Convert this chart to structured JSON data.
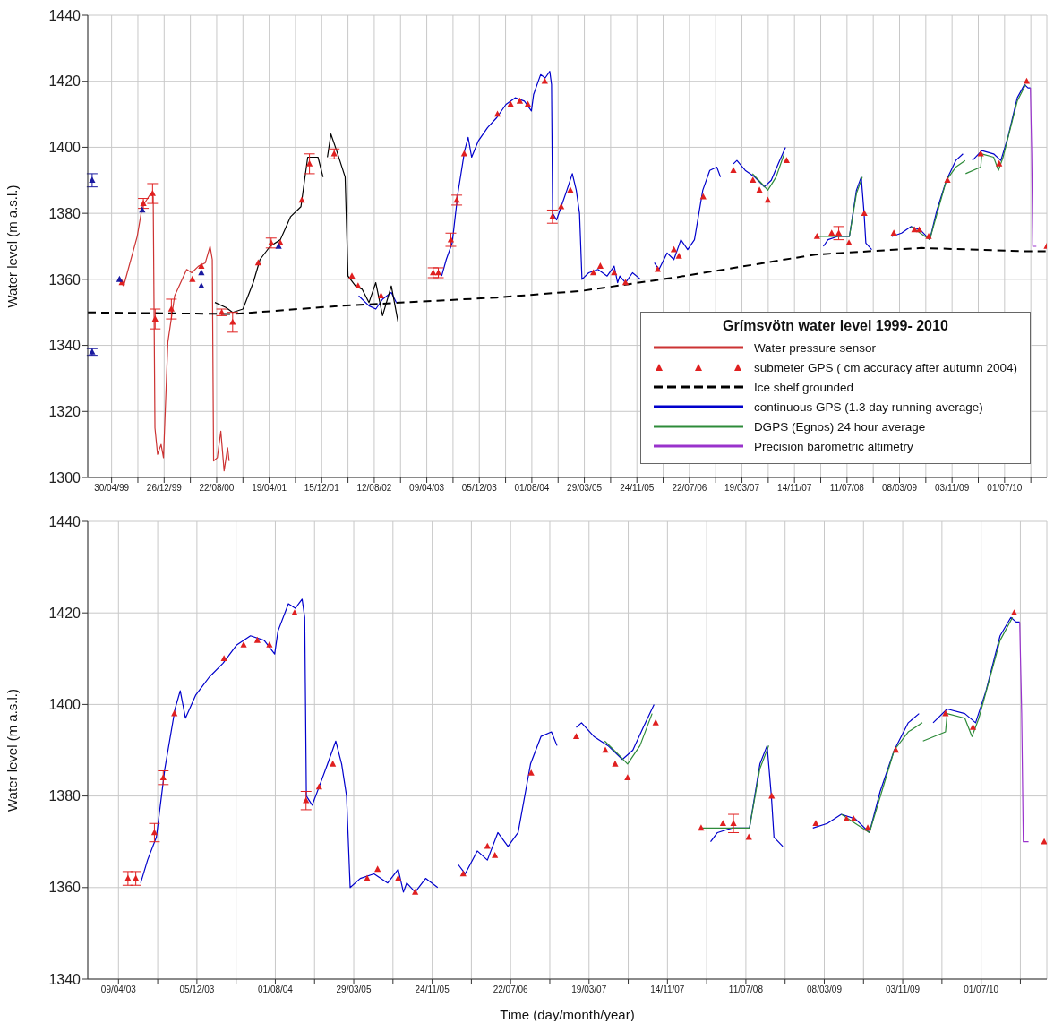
{
  "chart_data": [
    {
      "type": "line",
      "ylabel": "Water level (m a.s.l.)",
      "legend_title": "Grímsvötn water level 1999- 2010",
      "legend": "bottom right",
      "grid": true,
      "xlim": [
        "1999-01-11",
        "2011-01-10"
      ],
      "ylim": [
        1300,
        1440
      ],
      "yticks": [
        1300,
        1320,
        1340,
        1360,
        1380,
        1400,
        1420,
        1440
      ],
      "xticks": [
        {
          "value": "1999-04-30",
          "label": "30/04/99"
        },
        {
          "value": "1999-08-28",
          "label": null
        },
        {
          "value": "1999-12-26",
          "label": "26/12/99"
        },
        {
          "value": "2000-04-24",
          "label": null
        },
        {
          "value": "2000-08-22",
          "label": "22/08/00"
        },
        {
          "value": "2000-12-20",
          "label": null
        },
        {
          "value": "2001-04-19",
          "label": "19/04/01"
        },
        {
          "value": "2001-08-17",
          "label": null
        },
        {
          "value": "2001-12-15",
          "label": "15/12/01"
        },
        {
          "value": "2002-04-14",
          "label": null
        },
        {
          "value": "2002-08-12",
          "label": "12/08/02"
        },
        {
          "value": "2002-12-10",
          "label": null
        },
        {
          "value": "2003-04-09",
          "label": "09/04/03"
        },
        {
          "value": "2003-08-07",
          "label": null
        },
        {
          "value": "2003-12-05",
          "label": "05/12/03"
        },
        {
          "value": "2004-04-03",
          "label": null
        },
        {
          "value": "2004-08-01",
          "label": "01/08/04"
        },
        {
          "value": "2004-11-29",
          "label": null
        },
        {
          "value": "2005-03-29",
          "label": "29/03/05"
        },
        {
          "value": "2005-07-27",
          "label": null
        },
        {
          "value": "2005-11-24",
          "label": "24/11/05"
        },
        {
          "value": "2006-03-24",
          "label": null
        },
        {
          "value": "2006-07-22",
          "label": "22/07/06"
        },
        {
          "value": "2006-11-19",
          "label": null
        },
        {
          "value": "2007-03-19",
          "label": "19/03/07"
        },
        {
          "value": "2007-07-17",
          "label": null
        },
        {
          "value": "2007-11-14",
          "label": "14/11/07"
        },
        {
          "value": "2008-03-13",
          "label": null
        },
        {
          "value": "2008-07-11",
          "label": "11/07/08"
        },
        {
          "value": "2008-11-08",
          "label": null
        },
        {
          "value": "2009-03-08",
          "label": "08/03/09"
        },
        {
          "value": "2009-07-06",
          "label": null
        },
        {
          "value": "2009-11-03",
          "label": "03/11/09"
        },
        {
          "value": "2010-03-03",
          "label": null
        },
        {
          "value": "2010-07-01",
          "label": "01/07/10"
        },
        {
          "value": "2010-10-29",
          "label": null
        }
      ],
      "series": [
        {
          "name": "Water pressure sensor",
          "color": "#cc3333",
          "x": [
            "1999-05-31",
            "1999-06-24",
            "1999-08-25",
            "1999-09-17",
            "1999-10-26",
            "1999-11-06",
            "1999-11-14",
            "1999-11-26",
            "1999-12-12",
            "1999-12-23",
            "2000-01-12",
            "2000-02-12",
            "2000-04-07",
            "2000-04-30",
            "2000-05-31",
            "2000-07-01",
            "2000-07-23",
            "2000-08-02",
            "2000-08-08",
            "2000-08-25",
            "2000-09-10",
            "2000-09-25",
            "2000-10-11",
            "2000-10-18"
          ],
          "values": [
            1360,
            1358,
            1373,
            1382,
            1386,
            1385,
            1315,
            1307,
            1310,
            1306,
            1341,
            1355,
            1363,
            1362,
            1364,
            1365,
            1370,
            1366,
            1305,
            1306,
            1314,
            1302,
            1309,
            1305
          ]
        },
        {
          "name": "submeter GPS ( cm accuracy after autumn 2004)",
          "type": "scatter",
          "marker": "triangle",
          "color": "#e02020",
          "x": [
            "1999-06-16",
            "1999-09-22",
            "1999-11-03",
            "1999-11-15",
            "2000-01-28",
            "2000-05-03",
            "2000-06-13",
            "2000-09-14",
            "2000-11-03",
            "2001-02-28",
            "2001-04-28",
            "2001-06-09",
            "2001-09-15",
            "2001-10-20",
            "2002-02-10",
            "2002-05-02",
            "2002-05-30",
            "2002-09-12",
            "2003-05-08",
            "2003-06-01",
            "2003-07-28",
            "2003-08-24",
            "2003-09-27",
            "2004-02-26",
            "2004-04-26",
            "2004-06-07",
            "2004-07-14",
            "2004-09-29",
            "2004-11-03",
            "2004-12-13",
            "2005-01-24",
            "2005-05-09",
            "2005-06-10",
            "2005-08-12",
            "2005-10-03",
            "2006-02-27",
            "2006-05-12",
            "2006-06-04",
            "2006-09-23",
            "2007-02-08",
            "2007-05-08",
            "2007-06-07",
            "2007-07-15",
            "2007-10-09",
            "2008-02-25",
            "2008-05-02",
            "2008-06-03",
            "2008-07-20",
            "2008-09-28",
            "2009-02-10",
            "2009-05-15",
            "2009-06-06",
            "2009-07-19",
            "2009-10-13",
            "2010-03-14",
            "2010-06-06",
            "2010-10-10",
            "2011-01-10"
          ],
          "values": [
            1359,
            1383,
            1386,
            1348,
            1351,
            1360,
            1364,
            1350,
            1347,
            1365,
            1371,
            1371,
            1384,
            1395,
            1398,
            1361,
            1358,
            1355,
            1362,
            1362,
            1372,
            1384,
            1398,
            1410,
            1413,
            1414,
            1413,
            1420,
            1379,
            1382,
            1387,
            1362,
            1364,
            1362,
            1359,
            1363,
            1369,
            1367,
            1385,
            1393,
            1390,
            1387,
            1384,
            1396,
            1373,
            1374,
            1374,
            1371,
            1380,
            1374,
            1375,
            1375,
            1373,
            1390,
            1398,
            1395,
            1420,
            1370
          ],
          "errors": [
            null,
            1.5,
            3,
            3,
            3,
            null,
            null,
            1,
            3,
            null,
            1.5,
            null,
            null,
            3,
            1.5,
            null,
            null,
            null,
            1.5,
            1.5,
            2,
            1.5,
            null,
            null,
            null,
            null,
            null,
            null,
            2,
            null,
            null,
            null,
            null,
            null,
            null,
            null,
            null,
            null,
            null,
            null,
            null,
            null,
            null,
            null,
            null,
            null,
            2,
            null,
            null,
            null,
            null,
            null,
            null,
            null,
            null,
            null,
            null,
            null
          ]
        },
        {
          "name": "Ice shelf grounded",
          "line_style": "dashed",
          "color": "#000000",
          "x": [
            "1999-01-11",
            "2000-11-03",
            "2002-03-17",
            "2004-02-22",
            "2005-03-16",
            "2006-05-11",
            "2008-02-17",
            "2009-06-16",
            "2010-10-14",
            "2011-01-10"
          ],
          "values": [
            1350,
            1349.5,
            1352,
            1354.5,
            1356.5,
            1360.5,
            1367.5,
            1369.5,
            1368.5,
            1368.5
          ]
        },
        {
          "name": "continuous GPS (1.3 day running average)",
          "color": "#0000cc",
          "x": [
            "2002-06-02",
            "2002-07-19",
            "2002-08-19",
            "2002-09-19",
            "2002-10-29",
            "2002-11-21",
            "2003-02-01",
            "2003-06-16",
            "2003-07-07",
            "2003-08-03",
            "2003-08-29",
            "2003-09-29",
            "2003-10-15",
            "2003-10-31",
            "2003-12-01",
            "2004-01-12",
            "2004-02-23",
            "2004-04-05",
            "2004-05-17",
            "2004-06-28",
            "2004-07-30",
            "2004-08-09",
            "2004-09-10",
            "2004-10-01",
            "2004-10-22",
            "2004-10-30",
            "2004-11-04",
            "2004-11-22",
            "2004-12-13",
            "2005-01-08",
            "2005-02-02",
            "2005-02-20",
            "2005-03-07",
            "2005-03-18",
            "2005-04-18",
            "2005-05-30",
            "2005-07-11",
            "2005-08-12",
            "2005-08-28",
            "2005-09-07",
            "2005-10-03",
            "2005-11-04",
            "2005-12-11",
            "2006-01-10",
            "2006-02-12",
            "2006-03-05",
            "2006-04-11",
            "2006-05-12",
            "2006-06-13",
            "2006-07-14",
            "2006-08-14",
            "2006-09-21",
            "2006-10-23",
            "2006-11-24",
            "2006-12-11",
            "2007-01-10",
            "2007-02-08",
            "2007-02-24",
            "2007-04-03",
            "2007-05-16",
            "2007-06-29",
            "2007-07-31",
            "2007-09-01",
            "2007-10-04",
            "2008-01-01",
            "2008-03-25",
            "2008-04-15",
            "2008-05-29",
            "2008-07-22",
            "2008-08-23",
            "2008-09-14",
            "2008-09-27",
            "2008-10-05",
            "2008-11-01",
            "2008-12-15",
            "2009-02-01",
            "2009-03-17",
            "2009-04-29",
            "2009-06-11",
            "2009-07-24",
            "2009-08-26",
            "2009-10-08",
            "2009-11-20",
            "2009-12-23",
            "2010-01-15",
            "2010-02-04",
            "2010-03-19",
            "2010-05-12",
            "2010-06-14",
            "2010-07-16",
            "2010-08-28",
            "2010-09-30",
            "2010-10-16",
            "2010-10-27"
          ],
          "values": [
            1355,
            1352,
            1351,
            1354,
            1356,
            1353,
            null,
            1361,
            1366,
            1371,
            1386,
            1399,
            1403,
            1397,
            1402,
            1406,
            1409,
            1413,
            1415,
            1414,
            1411,
            1416,
            1422,
            1421,
            1423,
            1419,
            1380,
            1378,
            1382,
            1387,
            1392,
            1387,
            1380,
            1360,
            1362,
            1363,
            1361,
            1364,
            1359,
            1361,
            1359,
            1362,
            1360,
            null,
            1365,
            1363,
            1368,
            1366,
            1372,
            1369,
            1372,
            1387,
            1393,
            1394,
            1391,
            null,
            1395,
            1396,
            1393,
            1391,
            1388,
            1390,
            1395,
            1400,
            null,
            1370,
            1372,
            1373,
            1373,
            1387,
            1391,
            1380,
            1371,
            1369,
            null,
            1373,
            1374,
            1376,
            1375,
            1372,
            1381,
            1390,
            1396,
            1398,
            null,
            1396,
            1399,
            1398,
            1396,
            1403,
            1415,
            1419,
            1418,
            1418
          ]
        },
        {
          "name": "DGPS (Egnos) 24 hour average",
          "color": "#2e8b3a",
          "x": [
            "2007-05-06",
            "2007-06-18",
            "2007-07-15",
            "2007-08-22",
            "2007-09-28",
            "2007-12-01",
            "2008-02-21",
            "2008-05-07",
            "2008-07-22",
            "2008-08-23",
            "2008-09-19",
            "2008-12-15",
            "2009-04-29",
            "2009-06-11",
            "2009-07-24",
            "2009-10-08",
            "2009-11-20",
            "2010-01-02",
            "2010-01-03",
            "2010-01-04",
            "2010-03-14",
            "2010-03-19",
            "2010-05-12",
            "2010-06-03",
            "2010-06-24",
            "2010-08-28",
            "2010-10-05"
          ],
          "values": [
            1392,
            1389,
            1387,
            1391,
            1398,
            null,
            1373,
            1373,
            1373,
            1386,
            1391,
            null,
            1376,
            1374,
            1372,
            1390,
            1394,
            1396,
            null,
            1392,
            1394,
            1398,
            1397,
            1393,
            1397,
            1414,
            1419
          ]
        },
        {
          "name": "Precision barometric altimetry",
          "color": "#9932cc",
          "x": [
            "2010-10-27",
            "2010-11-02",
            "2010-11-07",
            "2010-11-23"
          ],
          "values": [
            1418,
            1398,
            1370,
            1370
          ]
        },
        {
          "color": "#000000",
          "x": [
            "2000-08-14",
            "2000-10-03",
            "2000-11-03",
            "2000-12-20",
            "2001-02-05",
            "2001-03-08",
            "2001-04-23",
            "2001-06-09",
            "2001-07-26",
            "2001-09-11",
            "2001-10-12",
            "2001-11-28",
            "2001-12-21",
            "2001-12-31",
            "2002-01-10",
            "2002-01-26",
            "2002-02-21",
            "2002-04-01",
            "2002-04-14",
            "2002-05-18",
            "2002-06-18",
            "2002-07-19",
            "2002-08-19",
            "2002-09-19",
            "2002-10-29",
            "2002-11-29"
          ],
          "values": [
            1353,
            1351.5,
            1350,
            1351,
            1359,
            1366,
            1370,
            1372,
            1379,
            1382,
            1397,
            1397,
            1391,
            null,
            1397,
            1404,
            1399,
            1391,
            1361,
            1358,
            1357,
            1353,
            1359,
            1349,
            1358,
            1347
          ]
        },
        {
          "type": "scatter",
          "marker": "triangle",
          "color": "#1a1aa0",
          "x": [
            "1999-01-31",
            "1999-01-31",
            "1999-06-05",
            "1999-09-17",
            "2000-06-13",
            "2000-06-13",
            "2001-06-01"
          ],
          "values": [
            1390,
            1338,
            1360,
            1381,
            1362,
            1358,
            1370
          ],
          "errors": [
            2,
            1,
            null,
            null,
            null,
            null,
            null
          ]
        }
      ]
    },
    {
      "type": "line",
      "xlabel": "Time (day/month/year)",
      "ylabel": "Water level (m a.s.l.)",
      "grid": true,
      "xlim": [
        "2003-01-05",
        "2011-01-18"
      ],
      "ylim": [
        1340,
        1440
      ],
      "yticks": [
        1340,
        1360,
        1380,
        1400,
        1420,
        1440
      ],
      "xticks": [
        {
          "value": "2003-04-09",
          "label": "09/04/03"
        },
        {
          "value": "2003-08-07",
          "label": null
        },
        {
          "value": "2003-12-05",
          "label": "05/12/03"
        },
        {
          "value": "2004-04-03",
          "label": null
        },
        {
          "value": "2004-08-01",
          "label": "01/08/04"
        },
        {
          "value": "2004-11-29",
          "label": null
        },
        {
          "value": "2005-03-29",
          "label": "29/03/05"
        },
        {
          "value": "2005-07-27",
          "label": null
        },
        {
          "value": "2005-11-24",
          "label": "24/11/05"
        },
        {
          "value": "2006-03-24",
          "label": null
        },
        {
          "value": "2006-07-22",
          "label": "22/07/06"
        },
        {
          "value": "2006-11-19",
          "label": null
        },
        {
          "value": "2007-03-19",
          "label": "19/03/07"
        },
        {
          "value": "2007-07-17",
          "label": null
        },
        {
          "value": "2007-11-14",
          "label": "14/11/07"
        },
        {
          "value": "2008-03-13",
          "label": null
        },
        {
          "value": "2008-07-11",
          "label": "11/07/08"
        },
        {
          "value": "2008-11-08",
          "label": null
        },
        {
          "value": "2009-03-08",
          "label": "08/03/09"
        },
        {
          "value": "2009-07-06",
          "label": null
        },
        {
          "value": "2009-11-03",
          "label": "03/11/09"
        },
        {
          "value": "2010-03-03",
          "label": null
        },
        {
          "value": "2010-07-01",
          "label": "01/07/10"
        },
        {
          "value": "2010-10-29",
          "label": null
        }
      ],
      "series": [
        {
          "color": "#0000cc",
          "x": [
            "2003-06-16",
            "2003-07-07",
            "2003-08-03",
            "2003-08-29",
            "2003-09-29",
            "2003-10-15",
            "2003-10-31",
            "2003-12-01",
            "2004-01-12",
            "2004-02-23",
            "2004-04-05",
            "2004-05-17",
            "2004-06-28",
            "2004-07-30",
            "2004-08-09",
            "2004-09-10",
            "2004-10-01",
            "2004-10-22",
            "2004-10-30",
            "2004-11-04",
            "2004-11-22",
            "2004-12-13",
            "2005-01-08",
            "2005-02-02",
            "2005-02-20",
            "2005-03-07",
            "2005-03-18",
            "2005-04-18",
            "2005-05-30",
            "2005-07-11",
            "2005-08-12",
            "2005-08-28",
            "2005-09-07",
            "2005-10-03",
            "2005-11-04",
            "2005-12-11",
            "2006-01-10",
            "2006-02-12",
            "2006-03-05",
            "2006-04-11",
            "2006-05-12",
            "2006-06-13",
            "2006-07-14",
            "2006-08-14",
            "2006-09-21",
            "2006-10-23",
            "2006-11-24",
            "2006-12-11",
            "2007-01-10",
            "2007-02-08",
            "2007-02-24",
            "2007-04-03",
            "2007-05-16",
            "2007-06-29",
            "2007-07-31",
            "2007-09-01",
            "2007-10-04",
            "2008-01-01",
            "2008-03-25",
            "2008-04-15",
            "2008-05-29",
            "2008-07-22",
            "2008-08-23",
            "2008-09-14",
            "2008-09-27",
            "2008-10-05",
            "2008-11-01",
            "2008-12-15",
            "2009-02-01",
            "2009-03-17",
            "2009-04-29",
            "2009-06-11",
            "2009-07-24",
            "2009-08-26",
            "2009-10-08",
            "2009-11-20",
            "2009-12-23",
            "2010-01-15",
            "2010-02-04",
            "2010-03-19",
            "2010-05-12",
            "2010-06-14",
            "2010-07-16",
            "2010-08-28",
            "2010-09-30",
            "2010-10-16",
            "2010-10-27"
          ],
          "values": [
            1361,
            1366,
            1371,
            1386,
            1399,
            1403,
            1397,
            1402,
            1406,
            1409,
            1413,
            1415,
            1414,
            1411,
            1416,
            1422,
            1421,
            1423,
            1419,
            1380,
            1378,
            1382,
            1387,
            1392,
            1387,
            1380,
            1360,
            1362,
            1363,
            1361,
            1364,
            1359,
            1361,
            1359,
            1362,
            1360,
            null,
            1365,
            1363,
            1368,
            1366,
            1372,
            1369,
            1372,
            1387,
            1393,
            1394,
            1391,
            null,
            1395,
            1396,
            1393,
            1391,
            1388,
            1390,
            1395,
            1400,
            null,
            1370,
            1372,
            1373,
            1373,
            1387,
            1391,
            1380,
            1371,
            1369,
            null,
            1373,
            1374,
            1376,
            1375,
            1372,
            1381,
            1390,
            1396,
            1398,
            null,
            1396,
            1399,
            1398,
            1396,
            1403,
            1415,
            1419,
            1418,
            1418
          ]
        },
        {
          "color": "#2e8b3a",
          "x": [
            "2007-05-06",
            "2007-06-18",
            "2007-07-15",
            "2007-08-22",
            "2007-09-28",
            "2007-12-01",
            "2008-02-21",
            "2008-05-07",
            "2008-07-22",
            "2008-08-23",
            "2008-09-19",
            "2008-12-15",
            "2009-04-29",
            "2009-06-11",
            "2009-07-24",
            "2009-10-08",
            "2009-11-20",
            "2010-01-02",
            "2010-01-03",
            "2010-01-04",
            "2010-03-14",
            "2010-03-19",
            "2010-05-12",
            "2010-06-03",
            "2010-06-24",
            "2010-08-28",
            "2010-10-05"
          ],
          "values": [
            1392,
            1389,
            1387,
            1391,
            1398,
            null,
            1373,
            1373,
            1373,
            1386,
            1391,
            null,
            1376,
            1374,
            1372,
            1390,
            1394,
            1396,
            null,
            1392,
            1394,
            1398,
            1397,
            1393,
            1397,
            1414,
            1419
          ]
        },
        {
          "color": "#9932cc",
          "x": [
            "2010-10-27",
            "2010-11-02",
            "2010-11-07",
            "2010-11-23"
          ],
          "values": [
            1418,
            1398,
            1370,
            1370
          ]
        },
        {
          "type": "scatter",
          "marker": "triangle",
          "color": "#e02020",
          "x": [
            "2003-05-08",
            "2003-06-01",
            "2003-07-28",
            "2003-08-24",
            "2003-09-27",
            "2004-02-26",
            "2004-04-26",
            "2004-06-07",
            "2004-07-14",
            "2004-09-29",
            "2004-11-03",
            "2004-12-13",
            "2005-01-24",
            "2005-05-09",
            "2005-06-10",
            "2005-08-12",
            "2005-10-03",
            "2006-02-27",
            "2006-05-12",
            "2006-06-04",
            "2006-09-23",
            "2007-02-08",
            "2007-05-08",
            "2007-06-07",
            "2007-07-15",
            "2007-10-09",
            "2008-02-25",
            "2008-05-02",
            "2008-06-03",
            "2008-07-20",
            "2008-09-28",
            "2009-02-10",
            "2009-05-15",
            "2009-06-06",
            "2009-07-19",
            "2009-10-13",
            "2010-03-14",
            "2010-06-06",
            "2010-10-10",
            "2011-01-10"
          ],
          "values": [
            1362,
            1362,
            1372,
            1384,
            1398,
            1410,
            1413,
            1414,
            1413,
            1420,
            1379,
            1382,
            1387,
            1362,
            1364,
            1362,
            1359,
            1363,
            1369,
            1367,
            1385,
            1393,
            1390,
            1387,
            1384,
            1396,
            1373,
            1374,
            1374,
            1371,
            1380,
            1374,
            1375,
            1375,
            1373,
            1390,
            1398,
            1395,
            1420,
            1370
          ],
          "errors": [
            1.5,
            1.5,
            2,
            1.5,
            null,
            null,
            null,
            null,
            null,
            null,
            2,
            null,
            null,
            null,
            null,
            null,
            null,
            null,
            null,
            null,
            null,
            null,
            null,
            null,
            null,
            null,
            null,
            null,
            2,
            null,
            null,
            null,
            null,
            null,
            null,
            null,
            null,
            null,
            null,
            null
          ]
        }
      ]
    }
  ]
}
